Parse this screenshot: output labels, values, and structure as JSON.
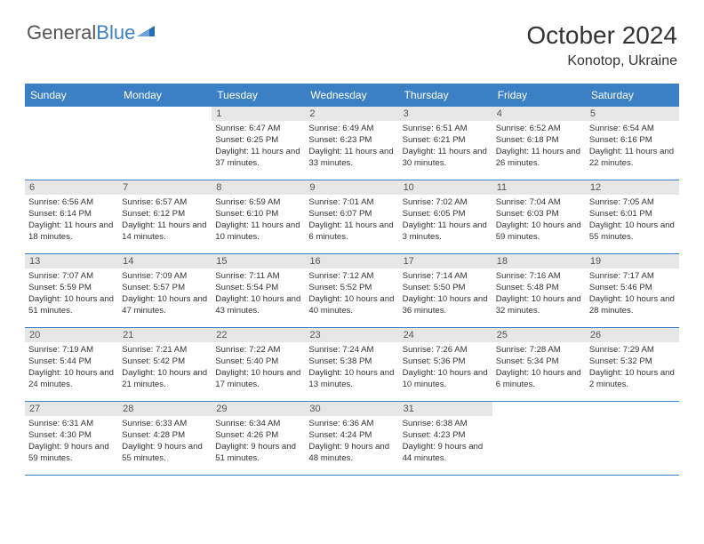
{
  "header": {
    "logo_prefix": "General",
    "logo_suffix": "Blue",
    "month_title": "October 2024",
    "location": "Konotop, Ukraine"
  },
  "day_names": [
    "Sunday",
    "Monday",
    "Tuesday",
    "Wednesday",
    "Thursday",
    "Friday",
    "Saturday"
  ],
  "weeks": [
    [
      {
        "n": "",
        "t": ""
      },
      {
        "n": "",
        "t": ""
      },
      {
        "n": "1",
        "t": "Sunrise: 6:47 AM\nSunset: 6:25 PM\nDaylight: 11 hours and 37 minutes."
      },
      {
        "n": "2",
        "t": "Sunrise: 6:49 AM\nSunset: 6:23 PM\nDaylight: 11 hours and 33 minutes."
      },
      {
        "n": "3",
        "t": "Sunrise: 6:51 AM\nSunset: 6:21 PM\nDaylight: 11 hours and 30 minutes."
      },
      {
        "n": "4",
        "t": "Sunrise: 6:52 AM\nSunset: 6:18 PM\nDaylight: 11 hours and 26 minutes."
      },
      {
        "n": "5",
        "t": "Sunrise: 6:54 AM\nSunset: 6:16 PM\nDaylight: 11 hours and 22 minutes."
      }
    ],
    [
      {
        "n": "6",
        "t": "Sunrise: 6:56 AM\nSunset: 6:14 PM\nDaylight: 11 hours and 18 minutes."
      },
      {
        "n": "7",
        "t": "Sunrise: 6:57 AM\nSunset: 6:12 PM\nDaylight: 11 hours and 14 minutes."
      },
      {
        "n": "8",
        "t": "Sunrise: 6:59 AM\nSunset: 6:10 PM\nDaylight: 11 hours and 10 minutes."
      },
      {
        "n": "9",
        "t": "Sunrise: 7:01 AM\nSunset: 6:07 PM\nDaylight: 11 hours and 6 minutes."
      },
      {
        "n": "10",
        "t": "Sunrise: 7:02 AM\nSunset: 6:05 PM\nDaylight: 11 hours and 3 minutes."
      },
      {
        "n": "11",
        "t": "Sunrise: 7:04 AM\nSunset: 6:03 PM\nDaylight: 10 hours and 59 minutes."
      },
      {
        "n": "12",
        "t": "Sunrise: 7:05 AM\nSunset: 6:01 PM\nDaylight: 10 hours and 55 minutes."
      }
    ],
    [
      {
        "n": "13",
        "t": "Sunrise: 7:07 AM\nSunset: 5:59 PM\nDaylight: 10 hours and 51 minutes."
      },
      {
        "n": "14",
        "t": "Sunrise: 7:09 AM\nSunset: 5:57 PM\nDaylight: 10 hours and 47 minutes."
      },
      {
        "n": "15",
        "t": "Sunrise: 7:11 AM\nSunset: 5:54 PM\nDaylight: 10 hours and 43 minutes."
      },
      {
        "n": "16",
        "t": "Sunrise: 7:12 AM\nSunset: 5:52 PM\nDaylight: 10 hours and 40 minutes."
      },
      {
        "n": "17",
        "t": "Sunrise: 7:14 AM\nSunset: 5:50 PM\nDaylight: 10 hours and 36 minutes."
      },
      {
        "n": "18",
        "t": "Sunrise: 7:16 AM\nSunset: 5:48 PM\nDaylight: 10 hours and 32 minutes."
      },
      {
        "n": "19",
        "t": "Sunrise: 7:17 AM\nSunset: 5:46 PM\nDaylight: 10 hours and 28 minutes."
      }
    ],
    [
      {
        "n": "20",
        "t": "Sunrise: 7:19 AM\nSunset: 5:44 PM\nDaylight: 10 hours and 24 minutes."
      },
      {
        "n": "21",
        "t": "Sunrise: 7:21 AM\nSunset: 5:42 PM\nDaylight: 10 hours and 21 minutes."
      },
      {
        "n": "22",
        "t": "Sunrise: 7:22 AM\nSunset: 5:40 PM\nDaylight: 10 hours and 17 minutes."
      },
      {
        "n": "23",
        "t": "Sunrise: 7:24 AM\nSunset: 5:38 PM\nDaylight: 10 hours and 13 minutes."
      },
      {
        "n": "24",
        "t": "Sunrise: 7:26 AM\nSunset: 5:36 PM\nDaylight: 10 hours and 10 minutes."
      },
      {
        "n": "25",
        "t": "Sunrise: 7:28 AM\nSunset: 5:34 PM\nDaylight: 10 hours and 6 minutes."
      },
      {
        "n": "26",
        "t": "Sunrise: 7:29 AM\nSunset: 5:32 PM\nDaylight: 10 hours and 2 minutes."
      }
    ],
    [
      {
        "n": "27",
        "t": "Sunrise: 6:31 AM\nSunset: 4:30 PM\nDaylight: 9 hours and 59 minutes."
      },
      {
        "n": "28",
        "t": "Sunrise: 6:33 AM\nSunset: 4:28 PM\nDaylight: 9 hours and 55 minutes."
      },
      {
        "n": "29",
        "t": "Sunrise: 6:34 AM\nSunset: 4:26 PM\nDaylight: 9 hours and 51 minutes."
      },
      {
        "n": "30",
        "t": "Sunrise: 6:36 AM\nSunset: 4:24 PM\nDaylight: 9 hours and 48 minutes."
      },
      {
        "n": "31",
        "t": "Sunrise: 6:38 AM\nSunset: 4:23 PM\nDaylight: 9 hours and 44 minutes."
      },
      {
        "n": "",
        "t": ""
      },
      {
        "n": "",
        "t": ""
      }
    ]
  ],
  "style": {
    "header_bg": "#3b7fc4",
    "daynum_bg": "#e6e6e6",
    "border_color": "#3b7fc4",
    "text_color": "#333333",
    "logo_gray": "#555555",
    "logo_blue": "#3b7fc4",
    "body_font_size": 9.6,
    "header_font_size": 12,
    "title_font_size": 28
  }
}
